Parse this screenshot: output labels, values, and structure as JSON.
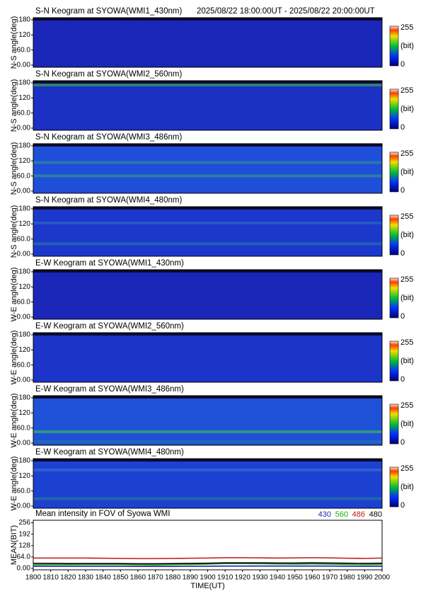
{
  "chart_data": [
    {
      "type": "keogram",
      "title": "S-N Keogram at SYOWA(WMI1_430nm)",
      "subtitle": "2025/08/22 18:00:00UT - 2025/08/22 20:00:00UT",
      "ylabel": "N-S angle(deg)",
      "ylim": [
        0,
        180
      ],
      "yticks": [
        {
          "value": 0,
          "label": "0.00"
        },
        {
          "value": 60,
          "label": "60.0"
        },
        120,
        180
      ],
      "clim": [
        0,
        255
      ],
      "colorbar_label": "(bit)"
    },
    {
      "type": "keogram",
      "title": "S-N Keogram at SYOWA(WMI2_560nm)",
      "ylabel": "N-S angle(deg)",
      "ylim": [
        0,
        180
      ],
      "yticks": [
        {
          "value": 0,
          "label": "0.00"
        },
        {
          "value": 60,
          "label": "60.0"
        },
        120,
        180
      ],
      "clim": [
        0,
        255
      ],
      "colorbar_label": "(bit)"
    },
    {
      "type": "keogram",
      "title": "S-N Keogram at SYOWA(WMI3_486nm)",
      "ylabel": "N-S angle(deg)",
      "ylim": [
        0,
        180
      ],
      "yticks": [
        {
          "value": 0,
          "label": "0.00"
        },
        {
          "value": 60,
          "label": "60.0"
        },
        120,
        180
      ],
      "clim": [
        0,
        255
      ],
      "colorbar_label": "(bit)"
    },
    {
      "type": "keogram",
      "title": "S-N Keogram at SYOWA(WMI4_480nm)",
      "ylabel": "N-S angle(deg)",
      "ylim": [
        0,
        180
      ],
      "yticks": [
        {
          "value": 0,
          "label": "0.00"
        },
        {
          "value": 60,
          "label": "60.0"
        },
        120,
        180
      ],
      "clim": [
        0,
        255
      ],
      "colorbar_label": "(bit)"
    },
    {
      "type": "keogram",
      "title": "E-W Keogram at SYOWA(WMI1_430nm)",
      "ylabel": "W-E angle(deg)",
      "ylim": [
        0,
        180
      ],
      "yticks": [
        {
          "value": 0,
          "label": "0.00"
        },
        {
          "value": 60,
          "label": "60.0"
        },
        120,
        180
      ],
      "clim": [
        0,
        255
      ],
      "colorbar_label": "(bit)"
    },
    {
      "type": "keogram",
      "title": "E-W Keogram at SYOWA(WMI2_560nm)",
      "ylabel": "W-E angle(deg)",
      "ylim": [
        0,
        180
      ],
      "yticks": [
        {
          "value": 0,
          "label": "0.00"
        },
        {
          "value": 60,
          "label": "60.0"
        },
        120,
        180
      ],
      "clim": [
        0,
        255
      ],
      "colorbar_label": "(bit)"
    },
    {
      "type": "keogram",
      "title": "E-W Keogram at SYOWA(WMI3_486nm)",
      "ylabel": "W-E angle(deg)",
      "ylim": [
        0,
        180
      ],
      "yticks": [
        {
          "value": 0,
          "label": "0.00"
        },
        {
          "value": 60,
          "label": "60.0"
        },
        120,
        180
      ],
      "clim": [
        0,
        255
      ],
      "colorbar_label": "(bit)"
    },
    {
      "type": "keogram",
      "title": "E-W Keogram at SYOWA(WMI4_480nm)",
      "ylabel": "W-E angle(deg)",
      "ylim": [
        0,
        180
      ],
      "yticks": [
        {
          "value": 0,
          "label": "0.00"
        },
        {
          "value": 60,
          "label": "60.0"
        },
        120,
        180
      ],
      "clim": [
        0,
        255
      ],
      "colorbar_label": "(bit)"
    },
    {
      "type": "line",
      "title": "Mean intensity in FOV of Syowa WMI",
      "ylabel": "MEAN(BIT)",
      "xlabel": "TIME(UT)",
      "x": [
        1800,
        1810,
        1820,
        1830,
        1840,
        1850,
        1860,
        1870,
        1880,
        1890,
        1900,
        1910,
        1920,
        1930,
        1940,
        1950,
        1960,
        1970,
        1980,
        1990,
        2000
      ],
      "xlim": [
        1800,
        2000
      ],
      "xticks": [
        1800,
        1810,
        1820,
        1830,
        1840,
        1850,
        1860,
        1870,
        1880,
        1890,
        1900,
        1910,
        1920,
        1930,
        1940,
        1950,
        1960,
        1970,
        1980,
        1990,
        2000
      ],
      "ylim": [
        -8,
        270
      ],
      "yticks": [
        {
          "value": 0,
          "label": "0.00"
        },
        {
          "value": 64,
          "label": "64.0"
        },
        128,
        192,
        256
      ],
      "series": [
        {
          "name": "430",
          "color": "#1f1fb0",
          "values": [
            12,
            12,
            12,
            12,
            12,
            12,
            11,
            11,
            11,
            12,
            12,
            13,
            13,
            13,
            13,
            13,
            13,
            13,
            12,
            12,
            12
          ]
        },
        {
          "name": "560",
          "color": "#17b017",
          "values": [
            20,
            21,
            21,
            22,
            22,
            22,
            20,
            19,
            21,
            22,
            24,
            27,
            27,
            26,
            25,
            24,
            25,
            24,
            22,
            21,
            22
          ]
        },
        {
          "name": "486",
          "color": "#c01818",
          "values": [
            58,
            58,
            58,
            58,
            57,
            56,
            55,
            55,
            56,
            57,
            58,
            60,
            60,
            59,
            58,
            59,
            60,
            59,
            57,
            56,
            58
          ]
        },
        {
          "name": "480",
          "color": "#000000",
          "values": [
            28,
            28,
            27,
            27,
            27,
            27,
            26,
            26,
            27,
            28,
            29,
            31,
            31,
            31,
            30,
            30,
            31,
            30,
            29,
            28,
            29
          ]
        }
      ]
    }
  ]
}
